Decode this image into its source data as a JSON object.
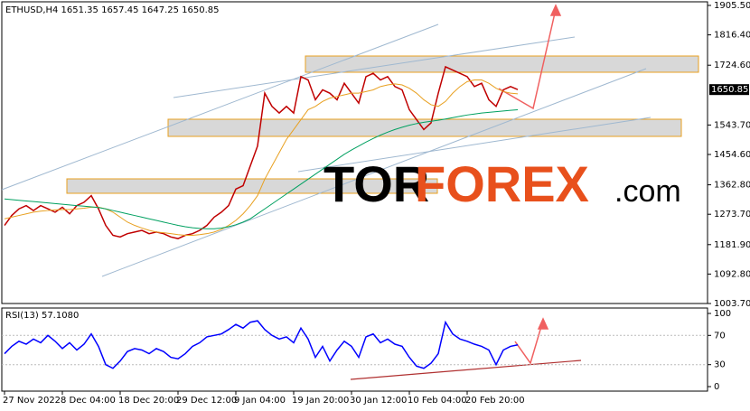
{
  "chart_data": [
    {
      "type": "line",
      "title": "ETHUSD,H4 1651.35 1657.45 1647.25 1650.85",
      "categories": [
        "27 Nov 2022",
        null,
        null,
        null,
        null,
        null,
        null,
        null,
        "8 Dec 04:00",
        null,
        null,
        null,
        null,
        null,
        null,
        null,
        "18 Dec 20:00",
        null,
        null,
        null,
        null,
        null,
        null,
        null,
        "29 Dec 12:00",
        null,
        null,
        null,
        null,
        null,
        null,
        null,
        "9 Jan 04:00",
        null,
        null,
        null,
        null,
        null,
        null,
        null,
        "19 Jan 20:00",
        null,
        null,
        null,
        null,
        null,
        null,
        null,
        "30 Jan 12:00",
        null,
        null,
        null,
        null,
        null,
        null,
        null,
        "10 Feb 04:00",
        null,
        null,
        null,
        null,
        null,
        null,
        null,
        "20 Feb 20:00",
        null,
        null,
        null,
        null,
        null,
        null,
        null
      ],
      "series": [
        {
          "color": "#c00000",
          "values": [
            1240,
            1270,
            1290,
            1300,
            1285,
            1300,
            1290,
            1280,
            1295,
            1275,
            1300,
            1310,
            1330,
            1290,
            1240,
            1210,
            1205,
            1215,
            1220,
            1225,
            1215,
            1220,
            1215,
            1205,
            1200,
            1210,
            1215,
            1225,
            1240,
            1265,
            1280,
            1300,
            1350,
            1360,
            1420,
            1480,
            1640,
            1600,
            1580,
            1600,
            1580,
            1690,
            1680,
            1620,
            1650,
            1640,
            1620,
            1670,
            1640,
            1610,
            1690,
            1700,
            1680,
            1690,
            1660,
            1650,
            1590,
            1560,
            1530,
            1550,
            1640,
            1720,
            1710,
            1700,
            1690,
            1660,
            1670,
            1620,
            1600,
            1650,
            1660,
            1650.85
          ]
        },
        {
          "color": "#e8a020",
          "values": [
            1260,
            1265,
            1270,
            1275,
            1280,
            1283,
            1285,
            1287,
            1288,
            1288,
            1290,
            1292,
            1295,
            1295,
            1290,
            1280,
            1265,
            1250,
            1240,
            1232,
            1225,
            1220,
            1218,
            1215,
            1212,
            1210,
            1210,
            1212,
            1215,
            1220,
            1228,
            1240,
            1255,
            1275,
            1300,
            1330,
            1380,
            1420,
            1460,
            1500,
            1530,
            1560,
            1590,
            1600,
            1615,
            1625,
            1630,
            1635,
            1640,
            1640,
            1645,
            1650,
            1660,
            1665,
            1668,
            1665,
            1655,
            1640,
            1620,
            1605,
            1600,
            1615,
            1640,
            1660,
            1675,
            1680,
            1680,
            1670,
            1655,
            1645,
            1640,
            1638
          ]
        },
        {
          "color": "#00a060",
          "values": [
            1320,
            1318,
            1316,
            1314,
            1312,
            1310,
            1308,
            1306,
            1304,
            1302,
            1300,
            1298,
            1296,
            1294,
            1290,
            1285,
            1280,
            1275,
            1270,
            1265,
            1260,
            1255,
            1250,
            1245,
            1240,
            1236,
            1233,
            1231,
            1230,
            1230,
            1232,
            1236,
            1242,
            1250,
            1260,
            1275,
            1290,
            1305,
            1320,
            1335,
            1350,
            1365,
            1380,
            1395,
            1410,
            1425,
            1440,
            1455,
            1468,
            1480,
            1492,
            1503,
            1513,
            1522,
            1530,
            1537,
            1543,
            1548,
            1552,
            1555,
            1558,
            1562,
            1566,
            1570,
            1574,
            1577,
            1580,
            1582,
            1584,
            1586,
            1588,
            1590
          ]
        }
      ],
      "ylim": [
        1003.7,
        1905.5
      ],
      "yticks": [
        {
          "value": 1003.7,
          "label": "1003.70"
        },
        {
          "value": 1092.8,
          "label": "1092.80"
        },
        {
          "value": 1181.9,
          "label": "1181.90"
        },
        {
          "value": 1273.7,
          "label": "1273.70"
        },
        {
          "value": 1362.8,
          "label": "1362.80"
        },
        {
          "value": 1454.6,
          "label": "1454.60"
        },
        {
          "value": 1543.7,
          "label": "1543.70"
        },
        {
          "value": 1724.6,
          "label": "1724.60"
        },
        {
          "value": 1816.4,
          "label": "1816.40"
        },
        {
          "value": 1905.5,
          "label": "1905.50"
        }
      ],
      "price_label": {
        "value": 1650.85,
        "label": "1650.85"
      },
      "watermark": [
        "TOR",
        "FOREX",
        ".com"
      ]
    },
    {
      "type": "line",
      "title": "RSI(13) 57.1080",
      "series": [
        {
          "color": "#0000ff",
          "values": [
            45,
            55,
            62,
            58,
            65,
            60,
            70,
            62,
            52,
            60,
            50,
            58,
            72,
            55,
            30,
            25,
            35,
            48,
            52,
            50,
            45,
            52,
            48,
            40,
            38,
            45,
            55,
            60,
            68,
            70,
            72,
            78,
            85,
            80,
            88,
            90,
            78,
            70,
            65,
            68,
            60,
            80,
            65,
            40,
            55,
            35,
            50,
            62,
            55,
            40,
            68,
            72,
            60,
            65,
            58,
            55,
            40,
            28,
            25,
            32,
            45,
            88,
            72,
            65,
            62,
            58,
            55,
            50,
            30,
            50,
            55,
            57.108
          ]
        }
      ],
      "ylim": [
        0,
        100
      ],
      "yticks": [
        0,
        30,
        70,
        100
      ]
    }
  ]
}
